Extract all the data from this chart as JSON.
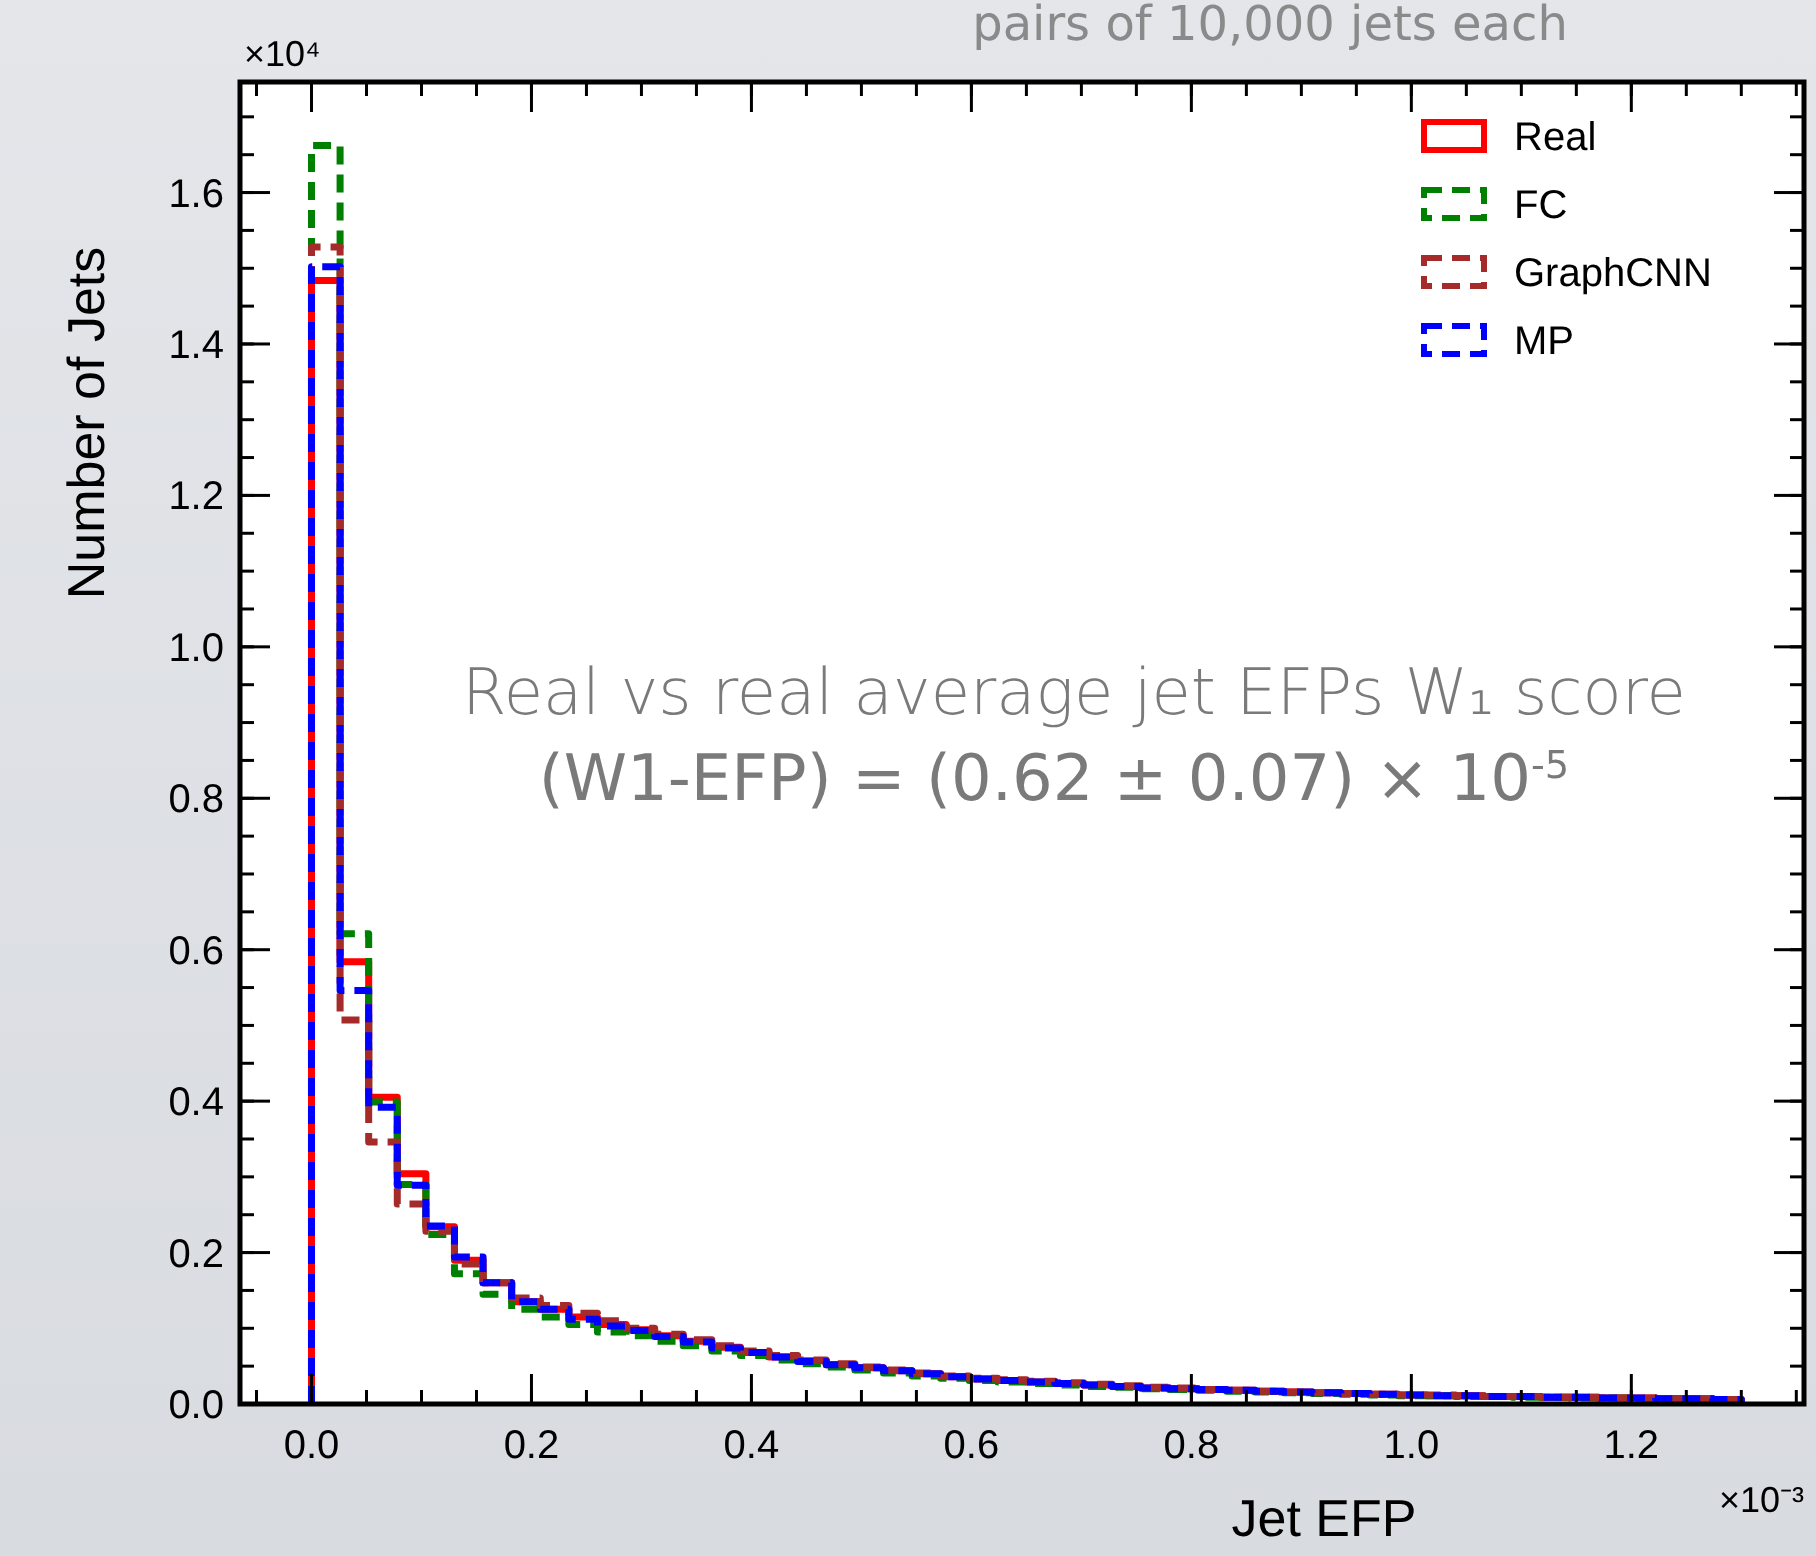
{
  "chart_data": {
    "type": "histogram",
    "xlabel": "Jet EFP",
    "ylabel": "Number of Jets",
    "bins": [
      0,
      0.026,
      0.052,
      0.078,
      0.104,
      0.13,
      0.156,
      0.182,
      0.208,
      0.234,
      0.26,
      0.286,
      0.312,
      0.338,
      0.364,
      0.39,
      0.416,
      0.442,
      0.468,
      0.494,
      0.52,
      0.546,
      0.572,
      0.598,
      0.624,
      0.65,
      0.676,
      0.702,
      0.728,
      0.754,
      0.78,
      0.806,
      0.832,
      0.858,
      0.884,
      0.91,
      0.936,
      0.962,
      0.988,
      1.014,
      1.04,
      1.066,
      1.092,
      1.118,
      1.144,
      1.17,
      1.196,
      1.222,
      1.248,
      1.274,
      1.3
    ],
    "series": [
      {
        "name": "Real",
        "color": "#ff0000",
        "line_style": "solid",
        "values": [
          1.484,
          0.584,
          0.405,
          0.304,
          0.234,
          0.19,
          0.16,
          0.135,
          0.125,
          0.115,
          0.105,
          0.098,
          0.09,
          0.083,
          0.075,
          0.068,
          0.062,
          0.057,
          0.052,
          0.048,
          0.044,
          0.04,
          0.036,
          0.033,
          0.031,
          0.029,
          0.027,
          0.025,
          0.023,
          0.021,
          0.02,
          0.019,
          0.018,
          0.017,
          0.016,
          0.015,
          0.014,
          0.013,
          0.012,
          0.011,
          0.011,
          0.01,
          0.01,
          0.009,
          0.009,
          0.008,
          0.008,
          0.007,
          0.007,
          0.006
        ]
      },
      {
        "name": "FC",
        "color": "#008000",
        "line_style": "dashed",
        "values": [
          1.662,
          0.621,
          0.399,
          0.29,
          0.224,
          0.172,
          0.145,
          0.125,
          0.115,
          0.105,
          0.095,
          0.09,
          0.083,
          0.077,
          0.07,
          0.064,
          0.058,
          0.053,
          0.049,
          0.045,
          0.041,
          0.037,
          0.034,
          0.031,
          0.029,
          0.027,
          0.025,
          0.023,
          0.022,
          0.02,
          0.019,
          0.018,
          0.017,
          0.016,
          0.015,
          0.014,
          0.013,
          0.012,
          0.011,
          0.011,
          0.01,
          0.01,
          0.009,
          0.009,
          0.008,
          0.008,
          0.007,
          0.007,
          0.006,
          0.006
        ]
      },
      {
        "name": "GraphCNN",
        "color": "#a52a2a",
        "line_style": "dashed",
        "values": [
          1.528,
          0.507,
          0.346,
          0.264,
          0.228,
          0.185,
          0.16,
          0.14,
          0.13,
          0.12,
          0.11,
          0.1,
          0.092,
          0.085,
          0.077,
          0.07,
          0.064,
          0.058,
          0.053,
          0.049,
          0.045,
          0.041,
          0.037,
          0.034,
          0.032,
          0.03,
          0.028,
          0.026,
          0.024,
          0.022,
          0.021,
          0.019,
          0.018,
          0.017,
          0.016,
          0.015,
          0.014,
          0.013,
          0.012,
          0.012,
          0.011,
          0.01,
          0.01,
          0.009,
          0.009,
          0.008,
          0.008,
          0.007,
          0.007,
          0.006
        ]
      },
      {
        "name": "MP",
        "color": "#0000ff",
        "line_style": "dashed",
        "values": [
          1.502,
          0.546,
          0.392,
          0.289,
          0.235,
          0.194,
          0.16,
          0.135,
          0.125,
          0.112,
          0.103,
          0.097,
          0.089,
          0.082,
          0.074,
          0.068,
          0.062,
          0.056,
          0.052,
          0.048,
          0.044,
          0.04,
          0.036,
          0.033,
          0.031,
          0.029,
          0.027,
          0.025,
          0.023,
          0.021,
          0.02,
          0.019,
          0.018,
          0.017,
          0.016,
          0.015,
          0.014,
          0.013,
          0.012,
          0.011,
          0.011,
          0.01,
          0.01,
          0.009,
          0.009,
          0.008,
          0.008,
          0.007,
          0.007,
          0.006
        ]
      }
    ],
    "xlim": [
      -0.065,
      1.357
    ],
    "ylim": [
      0,
      1.746
    ],
    "xticks": [
      {
        "value": 0,
        "label": "0.0"
      },
      {
        "value": 0.2,
        "label": "0.2"
      },
      {
        "value": 0.4,
        "label": "0.4"
      },
      {
        "value": 0.6,
        "label": "0.6"
      },
      {
        "value": 0.8,
        "label": "0.8"
      },
      {
        "value": 1.0,
        "label": "1.0"
      },
      {
        "value": 1.2,
        "label": "1.2"
      }
    ],
    "yticks": [
      {
        "value": 0,
        "label": "0.0"
      },
      {
        "value": 0.2,
        "label": "0.2"
      },
      {
        "value": 0.4,
        "label": "0.4"
      },
      {
        "value": 0.6,
        "label": "0.6"
      },
      {
        "value": 0.8,
        "label": "0.8"
      },
      {
        "value": 1.0,
        "label": "1.0"
      },
      {
        "value": 1.2,
        "label": "1.2"
      },
      {
        "value": 1.4,
        "label": "1.4"
      },
      {
        "value": 1.6,
        "label": "1.6"
      }
    ],
    "legend": "top right",
    "annotations": [
      "×10⁴",
      "×10⁻³",
      "Real vs real average jet EFPs W₁ score",
      "(W1-EFP) = (0.62 ± 0.07) × 10$^{-5}$",
      "pairs of 10,000 jets each"
    ]
  }
}
